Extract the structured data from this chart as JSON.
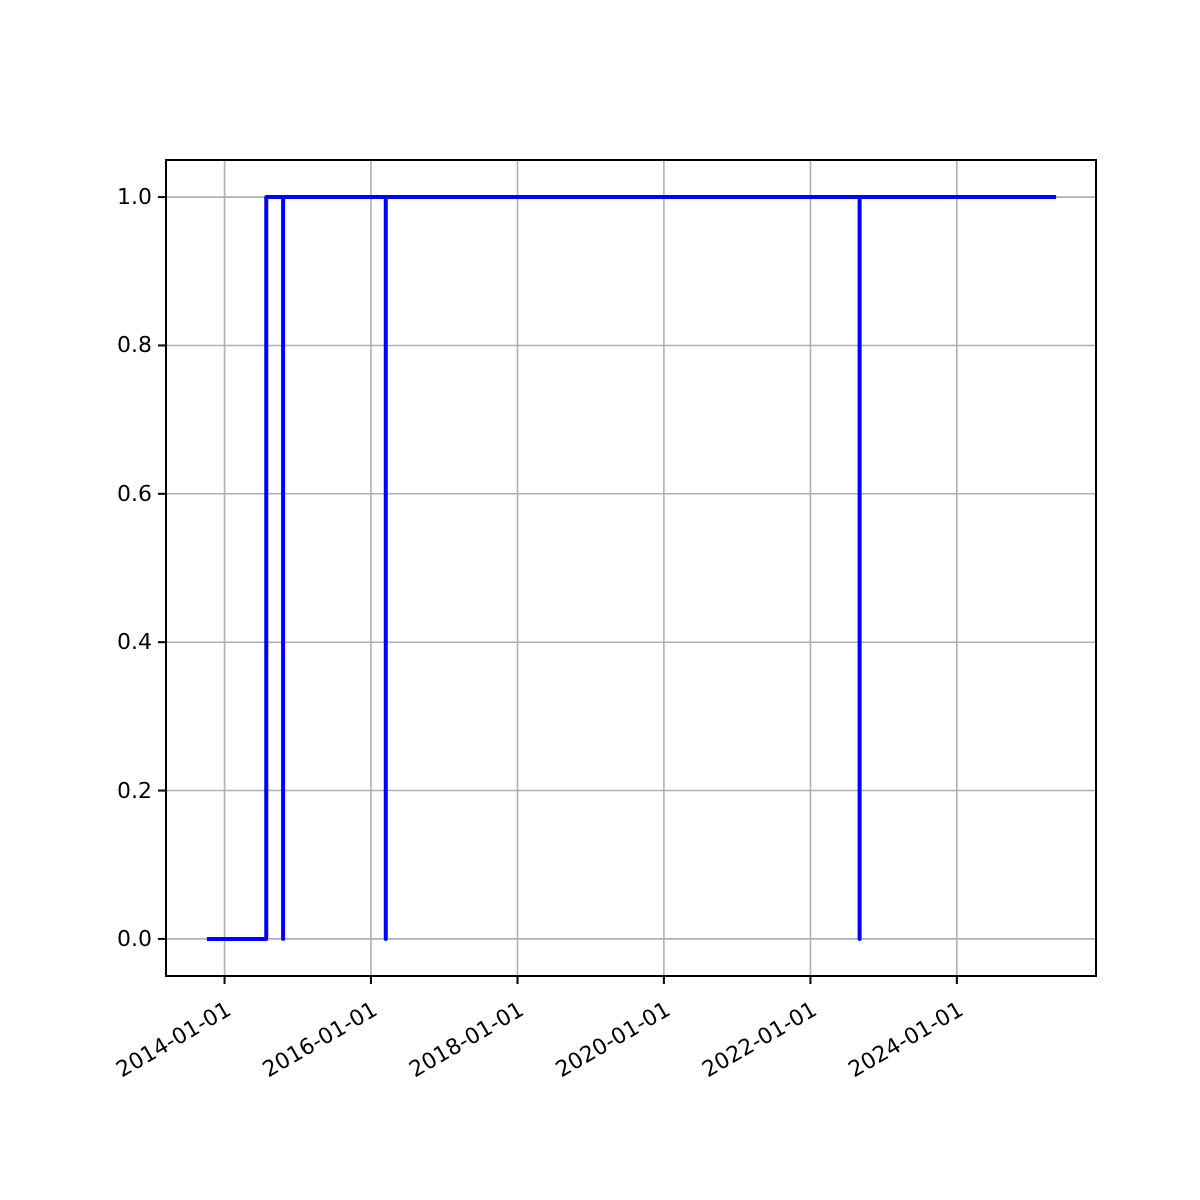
{
  "chart_data": {
    "type": "line",
    "xlim": [
      "2013-03-15",
      "2025-11-25"
    ],
    "ylim": [
      -0.05,
      1.05
    ],
    "xticks": [
      {
        "value": "2014-01-01",
        "label": "2014-01-01"
      },
      {
        "value": "2016-01-01",
        "label": "2016-01-01"
      },
      {
        "value": "2018-01-01",
        "label": "2018-01-01"
      },
      {
        "value": "2020-01-01",
        "label": "2020-01-01"
      },
      {
        "value": "2022-01-01",
        "label": "2022-01-01"
      },
      {
        "value": "2024-01-01",
        "label": "2024-01-01"
      }
    ],
    "yticks": [
      {
        "value": 0,
        "label": "0.0"
      },
      {
        "value": 0.2,
        "label": "0.2"
      },
      {
        "value": 0.4,
        "label": "0.4"
      },
      {
        "value": 0.6,
        "label": "0.6"
      },
      {
        "value": 0.8,
        "label": "0.8"
      },
      {
        "value": 1,
        "label": "1.0"
      }
    ],
    "grid": true,
    "line_style": "solid",
    "marker": "none",
    "series": [
      {
        "color": "#0000ff",
        "x": [
          "2013-10-05",
          "2014-07-28",
          "2014-07-28",
          "2014-10-20",
          "2014-10-20",
          "2014-10-20",
          "2016-03-15",
          "2016-03-15",
          "2016-03-15",
          "2022-09-03",
          "2022-09-03",
          "2022-09-03",
          "2025-05-10"
        ],
        "values": [
          0,
          0,
          1,
          1,
          0,
          1,
          1,
          0,
          1,
          1,
          0,
          1,
          1
        ]
      }
    ]
  }
}
